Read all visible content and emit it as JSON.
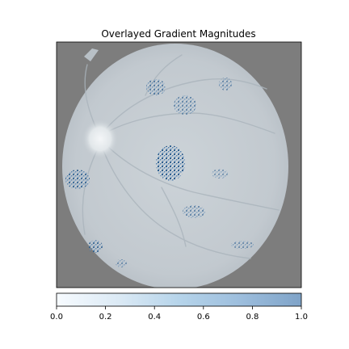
{
  "chart_data": {
    "type": "heatmap",
    "title": "Overlayed Gradient Magnitudes",
    "xlabel": "",
    "ylabel": "",
    "axes_ticks_visible": false,
    "background_image": "retinal fundus photograph (grayscale)",
    "colorbar": {
      "orientation": "horizontal",
      "location": "bottom",
      "range": [
        0.0,
        1.0
      ],
      "ticks": [
        0.0,
        0.2,
        0.4,
        0.6,
        0.8,
        1.0
      ],
      "tick_labels": [
        "0.0",
        "0.2",
        "0.4",
        "0.6",
        "0.8",
        "1.0"
      ],
      "colormap": "Blues",
      "low_color": "#f7fbff",
      "high_color": "#7fa3c8"
    },
    "hotspots": [
      {
        "region": "center",
        "intensity": 0.9
      },
      {
        "region": "left-middle",
        "intensity": 0.75
      },
      {
        "region": "upper-center",
        "intensity": 0.55
      },
      {
        "region": "upper-center-right",
        "intensity": 0.45
      },
      {
        "region": "upper-right",
        "intensity": 0.4
      },
      {
        "region": "lower-left",
        "intensity": 0.7
      },
      {
        "region": "lower-center",
        "intensity": 0.45
      },
      {
        "region": "lower-center-left",
        "intensity": 0.35
      },
      {
        "region": "lower-right",
        "intensity": 0.35
      },
      {
        "region": "center-right",
        "intensity": 0.3
      }
    ]
  },
  "colors": {
    "figure_background": "#ffffff",
    "outside_fundus": "#7d7d7d",
    "fundus_gray": "#c4cbd0",
    "optic_disc": "#eef1f3",
    "hotspot_blue": "#2e5f8f",
    "axes_spine": "#000000"
  }
}
